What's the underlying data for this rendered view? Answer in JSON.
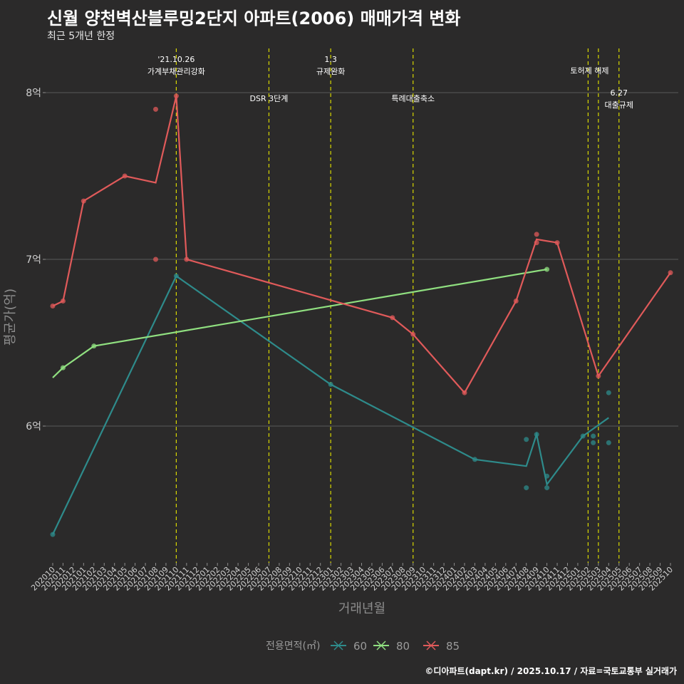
{
  "chart_data": {
    "type": "line",
    "title": "신월 양천벽산블루밍2단지 아파트(2006) 매매가격 변화",
    "subtitle": "최근 5개년 한정",
    "xlabel": "거래년월",
    "ylabel": "평균가(억)",
    "ylim": [
      5.3,
      8.3
    ],
    "y_ticks": [
      {
        "value": 6,
        "label": "6억"
      },
      {
        "value": 7,
        "label": "7억"
      },
      {
        "value": 8,
        "label": "8억"
      }
    ],
    "x_start": "202010",
    "x_categories": [
      "202010",
      "202011",
      "202012",
      "202101",
      "202102",
      "202103",
      "202104",
      "202105",
      "202106",
      "202107",
      "202108",
      "202109",
      "202110",
      "202111",
      "202112",
      "202201",
      "202202",
      "202203",
      "202204",
      "202205",
      "202206",
      "202207",
      "202208",
      "202209",
      "202210",
      "202211",
      "202212",
      "202301",
      "202302",
      "202303",
      "202304",
      "202305",
      "202306",
      "202307",
      "202308",
      "202309",
      "202310",
      "202311",
      "202312",
      "202401",
      "202402",
      "202403",
      "202404",
      "202405",
      "202406",
      "202407",
      "202408",
      "202409",
      "202410",
      "202411",
      "202412",
      "202501",
      "202502",
      "202503",
      "202504",
      "202505",
      "202506",
      "202507",
      "202508",
      "202509",
      "202510"
    ],
    "legend_title": "전용면적(㎡)",
    "legend_position": "bottom",
    "series": [
      {
        "name": "60",
        "color": "#2e8b8b",
        "line": [
          [
            0,
            5.35
          ],
          [
            12,
            6.9
          ],
          [
            27,
            6.25
          ],
          [
            41,
            5.8
          ],
          [
            46,
            5.76
          ],
          [
            47,
            5.95
          ],
          [
            48,
            5.65
          ],
          [
            51.5,
            5.94
          ],
          [
            54,
            6.05
          ]
        ],
        "points": [
          [
            0,
            5.35
          ],
          [
            12,
            6.9
          ],
          [
            27,
            6.25
          ],
          [
            41,
            5.8
          ],
          [
            46,
            5.92
          ],
          [
            46,
            5.63
          ],
          [
            47,
            5.95
          ],
          [
            48,
            5.7
          ],
          [
            48,
            5.63
          ],
          [
            51.5,
            5.94
          ],
          [
            52.5,
            5.94
          ],
          [
            52.5,
            5.9
          ],
          [
            54,
            6.2
          ],
          [
            54,
            5.9
          ]
        ]
      },
      {
        "name": "80",
        "color": "#90e080",
        "line": [
          [
            0,
            6.29
          ],
          [
            1,
            6.35
          ],
          [
            4,
            6.48
          ],
          [
            48,
            6.94
          ]
        ],
        "points": [
          [
            1,
            6.35
          ],
          [
            4,
            6.48
          ],
          [
            48,
            6.94
          ]
        ]
      },
      {
        "name": "85",
        "color": "#e05a5a",
        "line": [
          [
            0,
            6.72
          ],
          [
            1,
            6.75
          ],
          [
            3,
            7.35
          ],
          [
            7,
            7.5
          ],
          [
            10,
            7.46
          ],
          [
            12,
            7.98
          ],
          [
            13,
            7.0
          ],
          [
            33,
            6.65
          ],
          [
            35,
            6.55
          ],
          [
            40,
            6.2
          ],
          [
            45,
            6.75
          ],
          [
            47,
            7.12
          ],
          [
            49,
            7.1
          ],
          [
            53,
            6.3
          ],
          [
            60,
            6.92
          ]
        ],
        "points": [
          [
            0,
            6.72
          ],
          [
            1,
            6.75
          ],
          [
            3,
            7.35
          ],
          [
            7,
            7.5
          ],
          [
            10,
            7.9
          ],
          [
            10,
            7.0
          ],
          [
            12,
            7.98
          ],
          [
            13,
            7.0
          ],
          [
            33,
            6.65
          ],
          [
            35,
            6.55
          ],
          [
            40,
            6.2
          ],
          [
            45,
            6.75
          ],
          [
            47,
            7.15
          ],
          [
            47,
            7.1
          ],
          [
            49,
            7.1
          ],
          [
            53,
            6.3
          ],
          [
            60,
            6.92
          ]
        ]
      }
    ],
    "annotations": [
      {
        "x": 12,
        "lines": [
          "'21.10.26",
          "가계부채관리강화"
        ],
        "level": "high"
      },
      {
        "x": 21,
        "lines": [
          "DSR 3단계"
        ],
        "level": "low"
      },
      {
        "x": 27,
        "lines": [
          "1.3",
          "규제완화"
        ],
        "level": "high"
      },
      {
        "x": 35,
        "lines": [
          "특례대출축소"
        ],
        "level": "low"
      },
      {
        "x": 52,
        "lines": [
          "토허제 해제"
        ],
        "level": "mid"
      },
      {
        "x": 55,
        "lines": [
          "6.27",
          "대출규제"
        ],
        "level": "low"
      }
    ],
    "vlines": [
      12,
      21,
      27,
      35,
      52,
      53,
      55
    ]
  },
  "caption": "©디아파트(dapt.kr) / 2025.10.17 / 자료=국토교통부 실거래가"
}
